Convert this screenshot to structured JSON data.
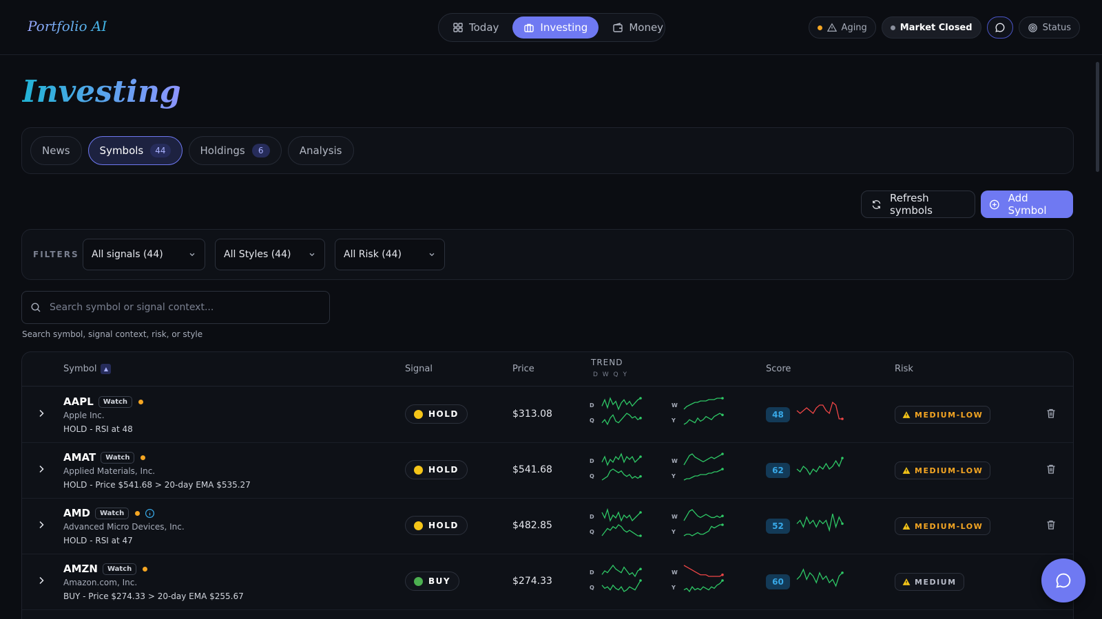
{
  "app": {
    "logo": "Portfolio AI"
  },
  "nav": {
    "items": [
      {
        "label": "Today",
        "icon": "grid-icon",
        "active": false
      },
      {
        "label": "Investing",
        "icon": "briefcase-icon",
        "active": true
      },
      {
        "label": "Money",
        "icon": "wallet-icon",
        "active": false
      }
    ],
    "aging_label": "Aging",
    "market_label": "Market Closed",
    "status_label": "Status"
  },
  "page": {
    "title": "Investing"
  },
  "tabs": [
    {
      "label": "News",
      "count": ""
    },
    {
      "label": "Symbols",
      "count": "44"
    },
    {
      "label": "Holdings",
      "count": "6"
    },
    {
      "label": "Analysis",
      "count": ""
    }
  ],
  "actions": {
    "refresh_label": "Refresh symbols",
    "add_label": "Add Symbol"
  },
  "filters": {
    "label": "FILTERS",
    "signals": "All signals (44)",
    "styles": "All Styles (44)",
    "risk": "All Risk (44)"
  },
  "search": {
    "placeholder": "Search symbol or signal context...",
    "help": "Search symbol, signal context, risk, or style"
  },
  "table": {
    "headers": {
      "symbol": "Symbol",
      "signal": "Signal",
      "price": "Price",
      "trend": "TREND",
      "trend_sub": "D W Q Y",
      "score": "Score",
      "risk": "Risk"
    },
    "spark_labels": {
      "d": "D",
      "q": "Q",
      "w": "W",
      "y": "Y"
    },
    "rows": [
      {
        "symbol": "AAPL",
        "tag": "Watch",
        "company": "Apple Inc.",
        "context": "HOLD - RSI at 48",
        "signal": "HOLD",
        "signal_color": "#f5c518",
        "price": "$313.08",
        "score": "48",
        "risk": "MEDIUM-LOW",
        "risk_color": "#f5a623",
        "info": false,
        "trend": {
          "d": [
            5,
            9,
            4,
            10,
            6,
            8,
            3,
            7,
            9,
            6,
            8,
            5,
            7,
            9,
            10
          ],
          "q": [
            4,
            6,
            3,
            7,
            9,
            5,
            4,
            6,
            8,
            10,
            9,
            7,
            8,
            6,
            7
          ],
          "w": [
            2,
            4,
            5,
            6,
            7,
            7,
            8,
            8,
            8,
            9,
            9,
            9,
            10,
            10,
            10
          ],
          "y": [
            2,
            3,
            5,
            4,
            3,
            6,
            4,
            5,
            7,
            6,
            5,
            7,
            8,
            9,
            8
          ]
        },
        "score_trend": [
          6,
          5,
          6,
          7,
          6,
          5,
          7,
          8,
          8,
          6,
          5,
          9,
          8,
          3,
          3
        ]
      },
      {
        "symbol": "AMAT",
        "tag": "Watch",
        "company": "Applied Materials, Inc.",
        "context": "HOLD - Price $541.68 > 20-day EMA $535.27",
        "signal": "HOLD",
        "signal_color": "#f5c518",
        "price": "$541.68",
        "score": "62",
        "risk": "MEDIUM-LOW",
        "risk_color": "#f5a623",
        "info": false,
        "trend": {
          "d": [
            7,
            9,
            6,
            8,
            7,
            9,
            8,
            10,
            7,
            9,
            8,
            9,
            7,
            8,
            9
          ],
          "q": [
            3,
            4,
            5,
            8,
            9,
            8,
            7,
            8,
            6,
            5,
            6,
            4,
            5,
            4,
            5
          ],
          "w": [
            3,
            6,
            9,
            10,
            8,
            7,
            6,
            5,
            6,
            7,
            8,
            7,
            8,
            9,
            10
          ],
          "y": [
            2,
            3,
            3,
            4,
            5,
            5,
            6,
            6,
            6,
            7,
            7,
            8,
            8,
            9,
            10
          ]
        },
        "score_trend": [
          5,
          4,
          6,
          5,
          3,
          5,
          4,
          6,
          5,
          7,
          5,
          6,
          8,
          6,
          9
        ]
      },
      {
        "symbol": "AMD",
        "tag": "Watch",
        "company": "Advanced Micro Devices, Inc.",
        "context": "HOLD - RSI at 47",
        "signal": "HOLD",
        "signal_color": "#f5c518",
        "price": "$482.85",
        "score": "52",
        "risk": "MEDIUM-LOW",
        "risk_color": "#f5a623",
        "info": true,
        "trend": {
          "d": [
            8,
            6,
            9,
            5,
            7,
            6,
            8,
            5,
            7,
            6,
            7,
            5,
            6,
            7,
            8
          ],
          "q": [
            3,
            5,
            7,
            6,
            8,
            7,
            9,
            8,
            6,
            5,
            6,
            5,
            4,
            3,
            3
          ],
          "w": [
            3,
            6,
            9,
            10,
            8,
            6,
            5,
            6,
            7,
            6,
            5,
            5,
            6,
            5,
            6
          ],
          "y": [
            2,
            3,
            3,
            2,
            3,
            4,
            3,
            3,
            4,
            5,
            8,
            7,
            8,
            9,
            9
          ]
        },
        "score_trend": [
          5,
          6,
          4,
          7,
          5,
          6,
          4,
          6,
          5,
          6,
          3,
          8,
          4,
          7,
          5
        ]
      },
      {
        "symbol": "AMZN",
        "tag": "Watch",
        "company": "Amazon.com, Inc.",
        "context": "BUY - Price $274.33 > 20-day EMA $255.67",
        "signal": "BUY",
        "signal_color": "#4caf50",
        "price": "$274.33",
        "score": "60",
        "risk": "MEDIUM",
        "risk_color": "#b8bcc8",
        "info": false,
        "trend": {
          "d": [
            5,
            7,
            6,
            8,
            10,
            8,
            7,
            6,
            9,
            7,
            5,
            6,
            4,
            7,
            8
          ],
          "q": [
            6,
            4,
            5,
            3,
            6,
            4,
            3,
            5,
            2,
            3,
            5,
            4,
            3,
            6,
            9
          ],
          "w": [
            10,
            9,
            8,
            7,
            6,
            5,
            4,
            4,
            4,
            3,
            3,
            3,
            3,
            3,
            4
          ],
          "y": [
            3,
            4,
            2,
            5,
            3,
            4,
            3,
            5,
            4,
            3,
            5,
            4,
            6,
            7,
            9
          ]
        },
        "score_trend": [
          5,
          6,
          8,
          5,
          7,
          6,
          4,
          7,
          5,
          6,
          4,
          5,
          3,
          6,
          7
        ]
      }
    ]
  },
  "colors": {
    "accent": "#6f79f2",
    "up": "#2ec866",
    "down": "#f04646",
    "aging_dot": "#f5a623",
    "market_dot": "#8a8f9c"
  }
}
